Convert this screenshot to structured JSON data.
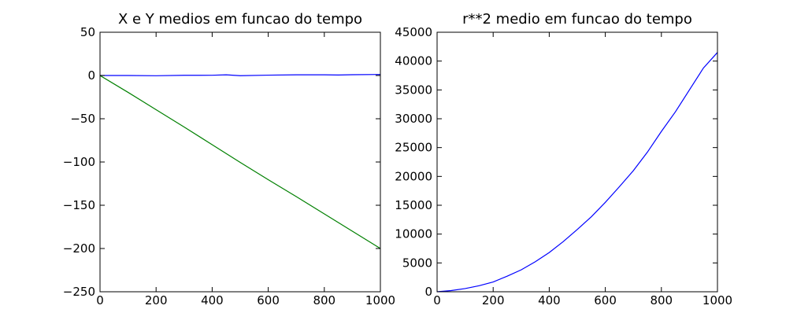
{
  "chart_data": [
    {
      "type": "line",
      "title": "X e Y medios em funcao do tempo",
      "xlabel": "",
      "ylabel": "",
      "xlim": [
        0,
        1000
      ],
      "ylim": [
        -250,
        50
      ],
      "xticks": [
        0,
        200,
        400,
        600,
        800,
        1000
      ],
      "yticks": [
        50,
        0,
        -50,
        -100,
        -150,
        -200,
        -250
      ],
      "xtick_labels": [
        "0",
        "200",
        "400",
        "600",
        "800",
        "1000"
      ],
      "ytick_labels": [
        "50",
        "0",
        "−50",
        "−100",
        "−150",
        "−200",
        "−250"
      ],
      "grid": false,
      "series": [
        {
          "color": "#0000ff",
          "x": [
            0,
            100,
            200,
            300,
            400,
            450,
            500,
            600,
            700,
            800,
            850,
            900,
            1000
          ],
          "y": [
            0,
            0,
            -0.3,
            0.2,
            0.3,
            0.8,
            -0.2,
            0.4,
            0.8,
            0.8,
            0.6,
            0.9,
            1.2
          ]
        },
        {
          "color": "#008000",
          "x": [
            0,
            100,
            200,
            300,
            400,
            500,
            600,
            700,
            800,
            900,
            1000
          ],
          "y": [
            0,
            -19.5,
            -39.5,
            -59.5,
            -80,
            -100.5,
            -120.5,
            -140,
            -160,
            -180,
            -200
          ]
        }
      ]
    },
    {
      "type": "line",
      "title": "r**2 medio em funcao do tempo",
      "xlabel": "",
      "ylabel": "",
      "xlim": [
        0,
        1000
      ],
      "ylim": [
        0,
        45000
      ],
      "xticks": [
        0,
        200,
        400,
        600,
        800,
        1000
      ],
      "yticks": [
        0,
        5000,
        10000,
        15000,
        20000,
        25000,
        30000,
        35000,
        40000,
        45000
      ],
      "xtick_labels": [
        "0",
        "200",
        "400",
        "600",
        "800",
        "1000"
      ],
      "ytick_labels": [
        "0",
        "5000",
        "10000",
        "15000",
        "20000",
        "25000",
        "30000",
        "35000",
        "40000",
        "45000"
      ],
      "grid": false,
      "series": [
        {
          "color": "#0000ff",
          "x": [
            0,
            50,
            100,
            150,
            200,
            250,
            300,
            350,
            400,
            450,
            500,
            550,
            600,
            650,
            700,
            750,
            800,
            850,
            900,
            950,
            1000
          ],
          "y": [
            0,
            200,
            550,
            1050,
            1700,
            2700,
            3800,
            5200,
            6800,
            8700,
            10800,
            13000,
            15500,
            18200,
            21000,
            24200,
            27800,
            31200,
            35000,
            38800,
            41500
          ]
        }
      ]
    }
  ]
}
